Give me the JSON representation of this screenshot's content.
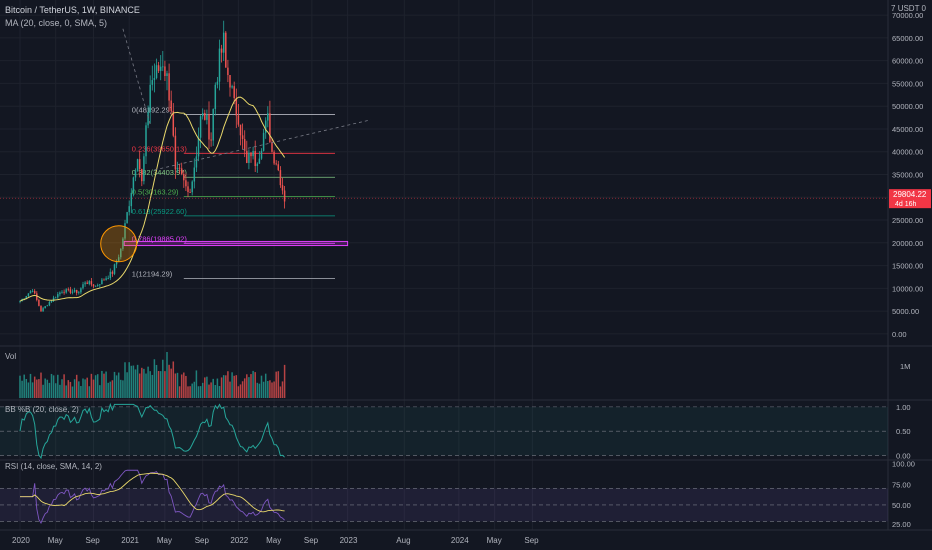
{
  "header": {
    "symbol": "Bitcoin / TetherUS, 1W, BINANCE",
    "ma_label": "MA (20, close, 0, SMA, 5)",
    "corner": "7  USDT  0"
  },
  "panes": {
    "vol_label": "Vol",
    "bb_label": "BB %B (20, close, 2)",
    "rsi_label": "RSI (14, close, SMA, 14, 2)"
  },
  "chart_data": {
    "type": "candlestick",
    "x_ticks": [
      "2020",
      "May",
      "Sep",
      "2021",
      "May",
      "Sep",
      "2022",
      "May",
      "Sep",
      "2023",
      "Aug",
      "2024",
      "May",
      "Sep"
    ],
    "price_axis": {
      "ticks": [
        70000,
        65000,
        60000,
        55000,
        50000,
        45000,
        40000,
        35000,
        30000,
        25000,
        20000,
        15000,
        10000,
        5000,
        0
      ],
      "tick_labels": [
        "70000.00",
        "65000.00",
        "60000.00",
        "55000.00",
        "50000.00",
        "45000.00",
        "40000.00",
        "35000.00",
        "30000.00",
        "25000.00",
        "20000.00",
        "15000.00",
        "10000.00",
        "5000.00",
        "0.00"
      ],
      "range": [
        -2000,
        72000
      ]
    },
    "current_price": {
      "value": 29804.22,
      "label": "29804.22",
      "countdown": "4d 16h",
      "color": "#f23645"
    },
    "fib_levels": [
      {
        "ratio": "0",
        "label": "0(48192.29)",
        "value": 48192.29,
        "color": "#b2b5be"
      },
      {
        "ratio": "0.236",
        "label": "0.236(39650.13)",
        "value": 39650.13,
        "color": "#f23645"
      },
      {
        "ratio": "0.382",
        "label": "0.382(34403.97)",
        "value": 34403.97,
        "color": "#81c784"
      },
      {
        "ratio": "0.5",
        "label": "0.5(30163.29)",
        "value": 30163.29,
        "color": "#4caf50"
      },
      {
        "ratio": "0.618",
        "label": "0.618(25922.60)",
        "value": 25922.6,
        "color": "#089981"
      },
      {
        "ratio": "0.786",
        "label": "0.786(19885.02)",
        "value": 19885.02,
        "color": "#e040fb"
      },
      {
        "ratio": "1",
        "label": "1(12194.29)",
        "value": 12194.29,
        "color": "#b2b5be"
      }
    ],
    "support_zone": {
      "from": 19400,
      "to": 20300,
      "color": "#9c27b0"
    },
    "vol_axis": {
      "tick_labels": [
        "1M"
      ]
    },
    "bb_axis": {
      "tick_labels": [
        "1.00",
        "0.50",
        "0.00"
      ],
      "range": [
        -0.05,
        1.1
      ]
    },
    "rsi_axis": {
      "tick_labels": [
        "100.00",
        "75.00",
        "50.00",
        "25.00"
      ],
      "range": [
        22,
        102
      ]
    },
    "colors": {
      "up": "#26a69a",
      "down": "#ef5350",
      "ma": "#e9d86b",
      "bb": "#26a69a",
      "rsi": "#7e57c2",
      "rsi_ma": "#e9d86b",
      "grid": "#1e222d"
    }
  }
}
